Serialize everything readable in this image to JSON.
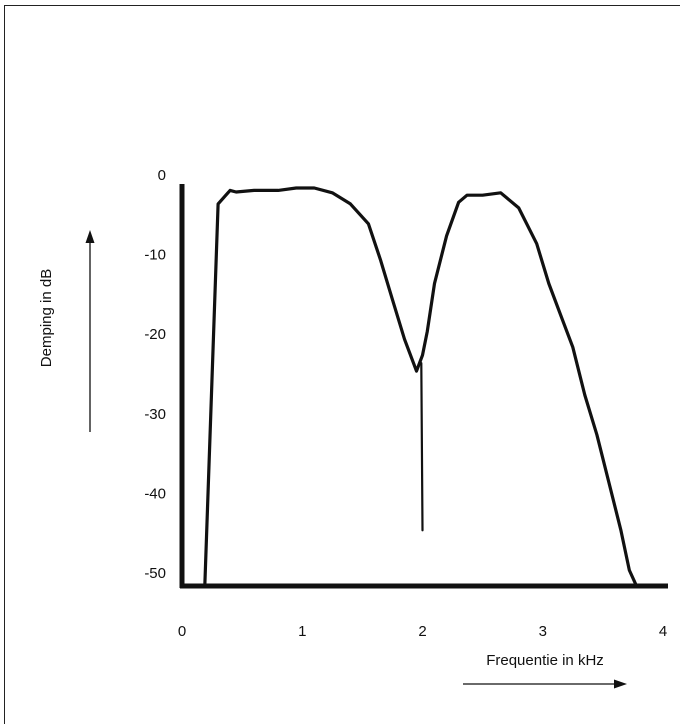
{
  "chart_data": {
    "type": "line",
    "title": "",
    "xlabel": "Frequentie in kHz",
    "ylabel": "Demping in dB",
    "xlim": [
      0,
      4
    ],
    "ylim": [
      -50,
      0
    ],
    "x_ticks": [
      "0",
      "1",
      "2",
      "3",
      "4"
    ],
    "y_ticks": [
      "0",
      "-10",
      "-20",
      "-30",
      "-40",
      "-50"
    ],
    "grid": false,
    "series": [
      {
        "x": [
          0.19,
          0.3,
          0.37,
          0.4,
          0.45,
          0.6,
          0.8,
          0.95,
          1.1,
          1.25,
          1.4,
          1.55,
          1.65,
          1.75,
          1.85,
          1.95,
          2.0,
          2.04,
          2.1,
          2.2,
          2.3,
          2.37,
          2.5,
          2.65,
          2.8,
          2.95,
          3.05,
          3.15,
          3.25,
          3.35,
          3.45,
          3.55,
          3.65,
          3.72,
          3.78
        ],
        "y": [
          -50,
          -2,
          -0.8,
          -0.3,
          -0.5,
          -0.3,
          -0.3,
          0,
          0,
          -0.6,
          -2,
          -4.5,
          -9,
          -14,
          -19,
          -23,
          -21,
          -18,
          -12,
          -6,
          -1.8,
          -0.9,
          -0.9,
          -0.6,
          -2.5,
          -7,
          -12,
          -16,
          -20,
          -26,
          -31,
          -37,
          -43,
          -48,
          -50
        ]
      },
      {
        "x": [
          1.99,
          2.0
        ],
        "y": [
          -22,
          -43
        ]
      }
    ]
  }
}
